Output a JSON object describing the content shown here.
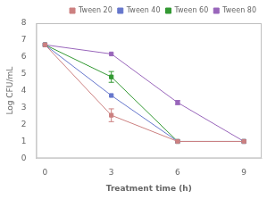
{
  "chart_data": {
    "type": "line",
    "x_label": "Treatment time (h)",
    "y_label": "Log CFU/mL",
    "x": [
      0,
      3,
      6,
      9
    ],
    "series": [
      {
        "name": "Tween 20",
        "color": "#cc8080",
        "marker": "square",
        "values": [
          6.72,
          2.55,
          1.0,
          1.0
        ],
        "yerr": [
          0.0,
          0.38,
          0.0,
          0.0
        ]
      },
      {
        "name": "Tween 40",
        "color": "#6677cc",
        "marker": "square",
        "values": [
          6.72,
          3.72,
          1.0,
          1.0
        ],
        "yerr": [
          0.0,
          0.0,
          0.0,
          0.0
        ]
      },
      {
        "name": "Tween 60",
        "color": "#339933",
        "marker": "square",
        "values": [
          6.72,
          4.82,
          1.0,
          1.0
        ],
        "yerr": [
          0.0,
          0.32,
          0.0,
          0.0
        ]
      },
      {
        "name": "Tween 80",
        "color": "#9966bb",
        "marker": "square",
        "values": [
          6.72,
          6.18,
          3.3,
          1.0
        ],
        "yerr": [
          0.0,
          0.0,
          0.12,
          0.0
        ]
      }
    ],
    "xlim": [
      -0.4,
      9.8
    ],
    "ylim": [
      0,
      8
    ],
    "xticks": [
      0,
      3,
      6,
      9
    ],
    "yticks": [
      0,
      1,
      2,
      3,
      4,
      5,
      6,
      7,
      8
    ],
    "grid": false,
    "legend": "upper right"
  }
}
